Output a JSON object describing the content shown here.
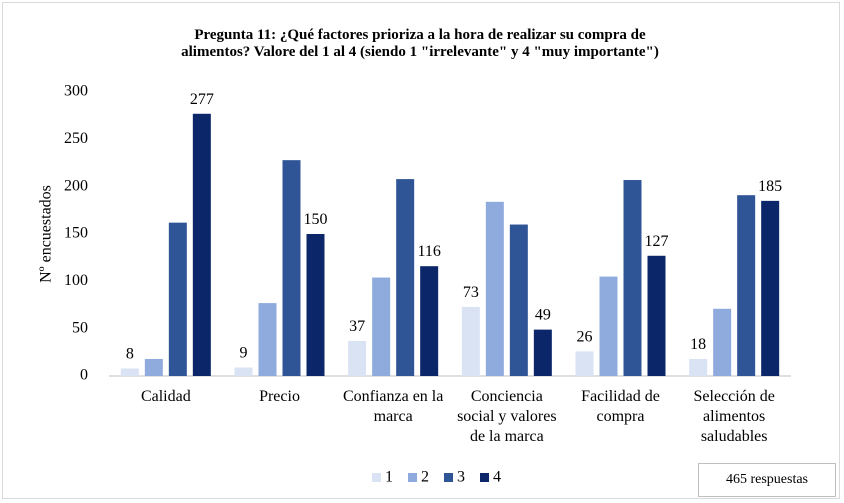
{
  "chart_data": {
    "type": "bar",
    "title": "Pregunta 11: ¿Qué factores prioriza a la hora de realizar su compra de\nalimentos? Valore del 1 al 4 (siendo 1 \"irrelevante\" y 4 \"muy importante\")",
    "y_label": "Nº encuestados",
    "note": "465 respuestas",
    "categories": [
      "Calidad",
      "Precio",
      "Confianza en la\nmarca",
      "Conciencia\nsocial y valores\nde la marca",
      "Facilidad de\ncompra",
      "Selección de\nalimentos\nsaludables"
    ],
    "series": [
      {
        "name": "1",
        "color": "#dae3f3",
        "show_labels": true,
        "values": [
          8,
          9,
          37,
          73,
          26,
          18
        ]
      },
      {
        "name": "2",
        "color": "#8faadc",
        "show_labels": false,
        "values": [
          18,
          77,
          104,
          184,
          105,
          71
        ]
      },
      {
        "name": "3",
        "color": "#2f5597",
        "show_labels": false,
        "values": [
          162,
          228,
          208,
          160,
          207,
          191
        ]
      },
      {
        "name": "4",
        "color": "#0c2769",
        "show_labels": true,
        "values": [
          277,
          150,
          116,
          49,
          127,
          185
        ]
      }
    ],
    "ylim": [
      0,
      300
    ],
    "yticks": [
      0,
      50,
      100,
      150,
      200,
      250,
      300
    ],
    "grid": false
  }
}
